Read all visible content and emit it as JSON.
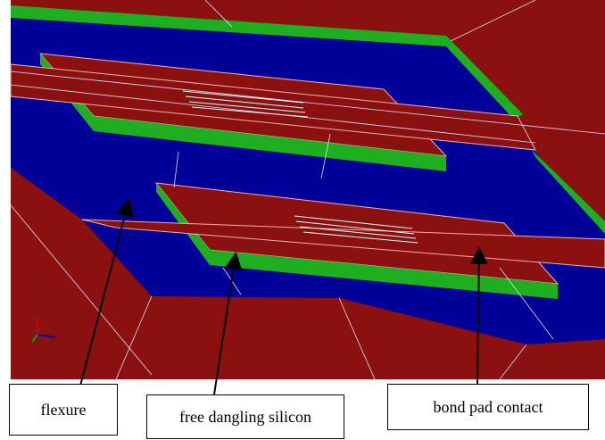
{
  "labels": [
    "flexure",
    "free dangling silicon",
    "bond pad contact"
  ]
}
